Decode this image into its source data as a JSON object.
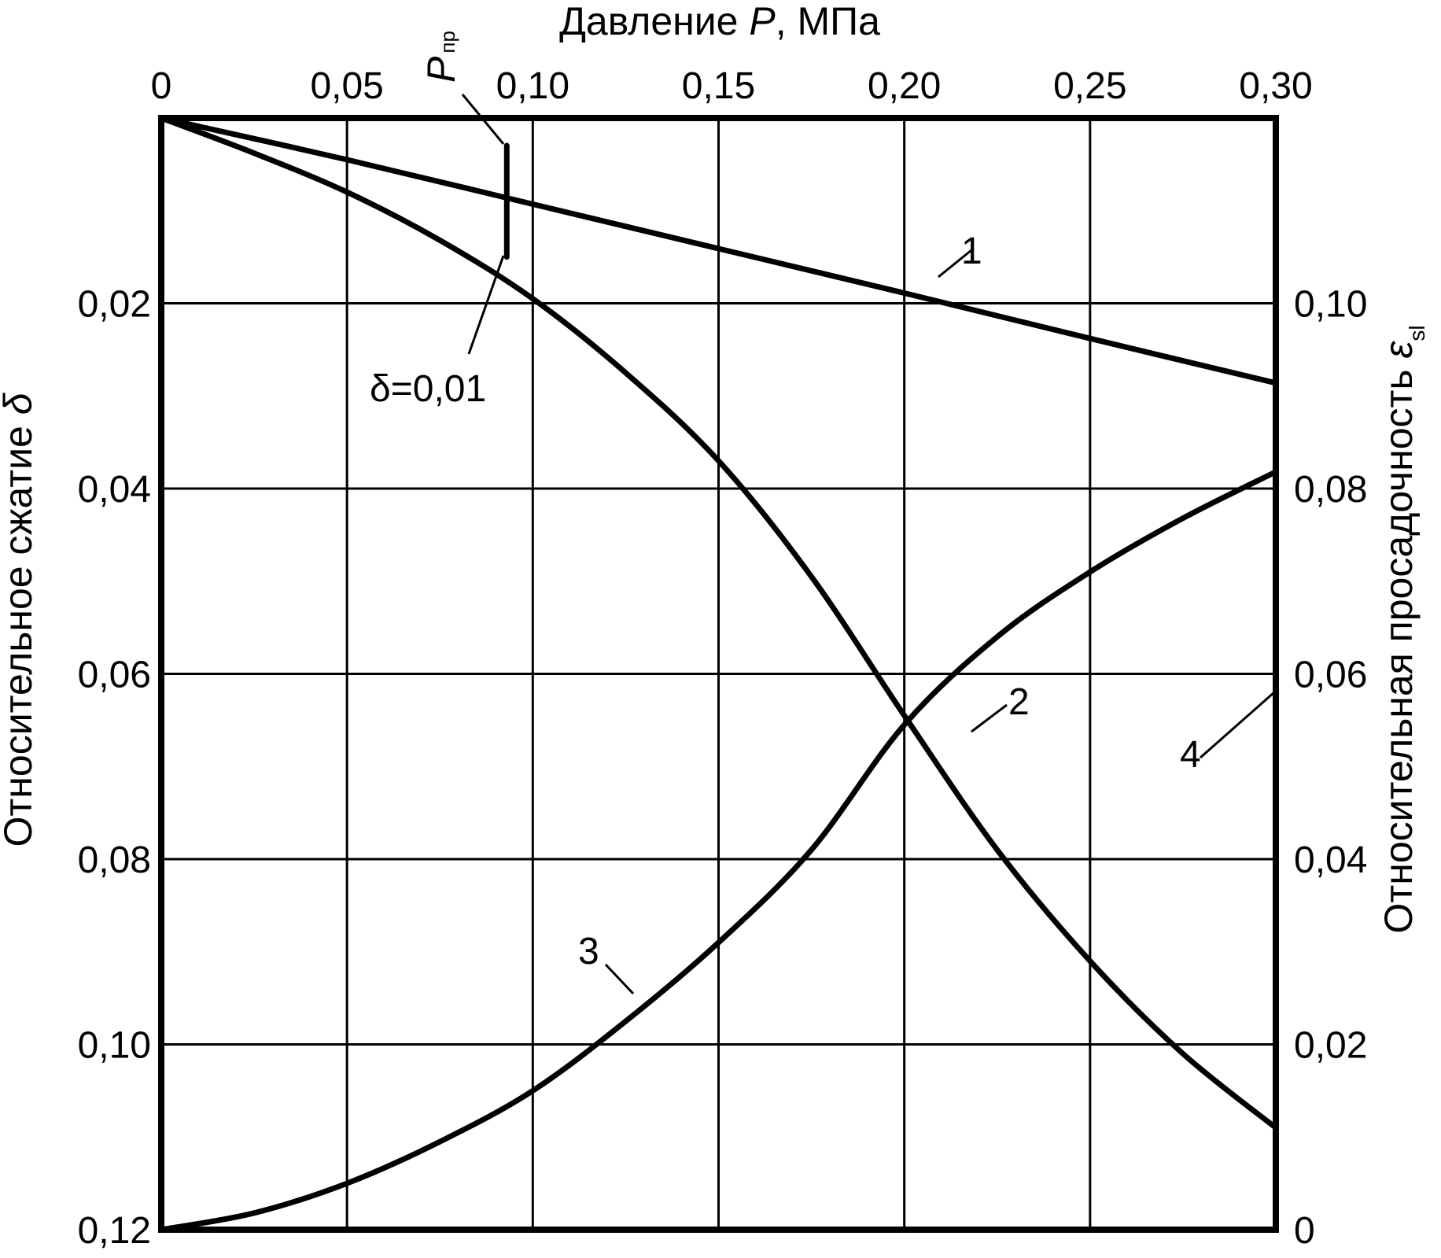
{
  "chart_data": {
    "type": "line",
    "xlabel_main": "Давление ",
    "xlabel_var": "P",
    "xlabel_unit": ", МПа",
    "ylabel_left_text": "Относительное сжатие ",
    "ylabel_left_symbol": "δ",
    "ylabel_right_text": "Относительная просадочность ",
    "ylabel_right_symbol": "ε",
    "ylabel_right_sub": "sl",
    "xlim": [
      0,
      0.3
    ],
    "ylim_left": [
      0,
      0.12
    ],
    "ylim_left_inverted": true,
    "ylim_right": [
      0,
      0.12
    ],
    "x_ticks": [
      {
        "value": 0,
        "label": "0"
      },
      {
        "value": 0.05,
        "label": "0,05"
      },
      {
        "value": 0.1,
        "label": "0,10"
      },
      {
        "value": 0.15,
        "label": "0,15"
      },
      {
        "value": 0.2,
        "label": "0,20"
      },
      {
        "value": 0.25,
        "label": "0,25"
      },
      {
        "value": 0.3,
        "label": "0,30"
      }
    ],
    "y_left_ticks": [
      {
        "value": 0.02,
        "label": "0,02"
      },
      {
        "value": 0.04,
        "label": "0,04"
      },
      {
        "value": 0.06,
        "label": "0,06"
      },
      {
        "value": 0.08,
        "label": "0,08"
      },
      {
        "value": 0.1,
        "label": "0,10"
      },
      {
        "value": 0.12,
        "label": "0,12"
      }
    ],
    "y_right_ticks": [
      {
        "value": 0,
        "label": "0"
      },
      {
        "value": 0.02,
        "label": "0,02"
      },
      {
        "value": 0.04,
        "label": "0,04"
      },
      {
        "value": 0.06,
        "label": "0,06"
      },
      {
        "value": 0.08,
        "label": "0,08"
      },
      {
        "value": 0.1,
        "label": "0,10"
      }
    ],
    "grid": true,
    "series": [
      {
        "label": "1",
        "axis": "left",
        "x": [
          0,
          0.05,
          0.1,
          0.15,
          0.2,
          0.25,
          0.3
        ],
        "y": [
          0,
          0.0045,
          0.0093,
          0.0141,
          0.0189,
          0.0238,
          0.0286
        ]
      },
      {
        "label": "2",
        "axis": "left",
        "x": [
          0,
          0.025,
          0.05,
          0.075,
          0.1,
          0.125,
          0.15,
          0.175,
          0.2,
          0.225,
          0.25,
          0.275,
          0.3
        ],
        "y": [
          0,
          0.0038,
          0.008,
          0.0132,
          0.0195,
          0.0275,
          0.037,
          0.0495,
          0.0645,
          0.079,
          0.091,
          0.101,
          0.109
        ]
      },
      {
        "label": "3",
        "axis": "right",
        "x": [
          0,
          0.025,
          0.05,
          0.075,
          0.1,
          0.125,
          0.15,
          0.175,
          0.2,
          0.225,
          0.25,
          0.275,
          0.3
        ],
        "y": [
          0,
          0.0018,
          0.005,
          0.0095,
          0.015,
          0.0225,
          0.031,
          0.041,
          0.0545,
          0.064,
          0.071,
          0.0768,
          0.0818
        ]
      }
    ],
    "annotations": {
      "p_pr_main": "P",
      "p_pr_sub": "пр",
      "p_pr_x": 0.093,
      "p_pr_delta": 0.015,
      "delta_label": "δ=0,01",
      "label_4": "4",
      "curve_4_x": 0.3,
      "curve_4_from_left": 0.0277,
      "curve_4_to_left": 0.12
    }
  }
}
